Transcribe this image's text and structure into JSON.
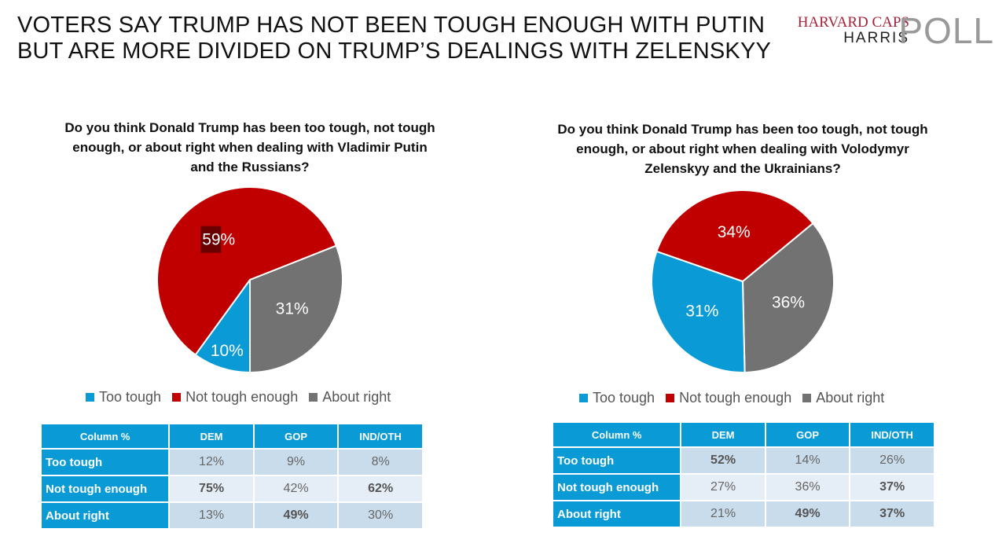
{
  "title": [
    "VOTERS SAY TRUMP HAS NOT BEEN TOUGH ENOUGH WITH PUTIN",
    "BUT ARE MORE DIVIDED ON TRUMP’S DEALINGS WITH ZELENSKYY"
  ],
  "logo": {
    "line1": "HARVARD CAPS",
    "line2": "HARRIS",
    "line3": "POLL"
  },
  "colors": {
    "too_tough": "#0a9bd6",
    "not_tough_enough": "#c00000",
    "about_right": "#727272"
  },
  "chart_data": [
    {
      "type": "pie",
      "title": "Do you think Donald Trump has been too tough, not tough enough, or about right when dealing with Vladimir Putin and the Russians?",
      "slices": [
        {
          "name": "About right",
          "value": 31,
          "label": "31%"
        },
        {
          "name": "Too tough",
          "value": 10,
          "label": "10%"
        },
        {
          "name": "Not tough enough",
          "value": 59,
          "label": "59%"
        }
      ],
      "legend": [
        "Too tough",
        "Not tough enough",
        "About right"
      ],
      "legend_position": "bottom",
      "table": {
        "headers": [
          "Column %",
          "DEM",
          "GOP",
          "IND/OTH"
        ],
        "rows": [
          {
            "label": "Too tough",
            "values": [
              "12%",
              "9%",
              "8%"
            ],
            "bold": [
              false,
              false,
              false
            ]
          },
          {
            "label": "Not tough enough",
            "values": [
              "75%",
              "42%",
              "62%"
            ],
            "bold": [
              true,
              false,
              true
            ]
          },
          {
            "label": "About right",
            "values": [
              "13%",
              "49%",
              "30%"
            ],
            "bold": [
              false,
              true,
              false
            ]
          }
        ]
      }
    },
    {
      "type": "pie",
      "title": "Do you think Donald Trump has been too tough, not tough enough, or about right when dealing with Volodymyr Zelenskyy and the Ukrainians?",
      "slices": [
        {
          "name": "About right",
          "value": 36,
          "label": "36%"
        },
        {
          "name": "Too tough",
          "value": 31,
          "label": "31%"
        },
        {
          "name": "Not tough enough",
          "value": 34,
          "label": "34%"
        }
      ],
      "legend": [
        "Too tough",
        "Not tough enough",
        "About right"
      ],
      "legend_position": "bottom",
      "table": {
        "headers": [
          "Column %",
          "DEM",
          "GOP",
          "IND/OTH"
        ],
        "rows": [
          {
            "label": "Too tough",
            "values": [
              "52%",
              "14%",
              "26%"
            ],
            "bold": [
              true,
              false,
              false
            ]
          },
          {
            "label": "Not tough enough",
            "values": [
              "27%",
              "36%",
              "37%"
            ],
            "bold": [
              false,
              false,
              true
            ]
          },
          {
            "label": "About right",
            "values": [
              "21%",
              "49%",
              "37%"
            ],
            "bold": [
              false,
              true,
              true
            ]
          }
        ]
      }
    }
  ]
}
